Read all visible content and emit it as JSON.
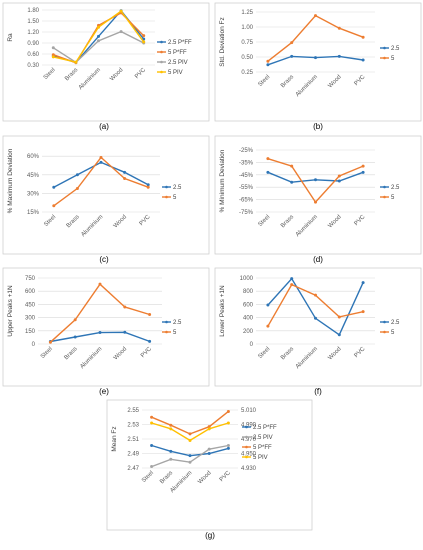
{
  "colors": {
    "blue": "#2E75B6",
    "orange": "#ED7D31",
    "gray": "#A5A5A5",
    "gold": "#FFC000",
    "grid": "#D9D9D9"
  },
  "chart_data": [
    {
      "panel_label": "(a)",
      "type": "line",
      "ylabel": "Ra",
      "ylim": [
        0.3,
        1.8
      ],
      "yticks": [
        "0.30",
        "0.60",
        "0.90",
        "1.20",
        "1.50",
        "1.80"
      ],
      "categories": [
        "Steel",
        "Brass",
        "Aluminium",
        "Wood",
        "PVC"
      ],
      "legend": "right",
      "series": [
        {
          "name": "2.5 P*FF",
          "color": "#2E75B6",
          "values": [
            0.55,
            0.37,
            1.08,
            1.78,
            1.01
          ]
        },
        {
          "name": "5 P*FF",
          "color": "#ED7D31",
          "values": [
            0.58,
            0.36,
            1.38,
            1.72,
            1.1
          ]
        },
        {
          "name": "2.5 PIV",
          "color": "#A5A5A5",
          "values": [
            0.77,
            0.37,
            0.96,
            1.21,
            0.9
          ]
        },
        {
          "name": "5 PIV",
          "color": "#FFC000",
          "values": [
            0.52,
            0.38,
            1.33,
            1.77,
            0.93
          ]
        }
      ]
    },
    {
      "panel_label": "(b)",
      "type": "line",
      "ylabel": "Std. Deviation Fz",
      "ylim": [
        0.25,
        1.25
      ],
      "yticks": [
        "0.25",
        "0.50",
        "0.75",
        "1.00",
        "1.25"
      ],
      "categories": [
        "Steel",
        "Brass",
        "Aluminium",
        "Wood",
        "PVC"
      ],
      "legend": "right",
      "series": [
        {
          "name": "2.5",
          "color": "#2E75B6",
          "values": [
            0.37,
            0.51,
            0.49,
            0.51,
            0.45
          ]
        },
        {
          "name": "5",
          "color": "#ED7D31",
          "values": [
            0.43,
            0.74,
            1.19,
            0.98,
            0.83
          ]
        }
      ]
    },
    {
      "panel_label": "(c)",
      "type": "line",
      "ylabel": "% Maximum Deviation",
      "ylim": [
        15,
        65
      ],
      "yticks": [
        "15%",
        "30%",
        "45%",
        "60%"
      ],
      "tick_values": [
        15,
        30,
        45,
        60
      ],
      "categories": [
        "Steel",
        "Brass",
        "Aluminium",
        "Wood",
        "PVC"
      ],
      "legend": "right",
      "series": [
        {
          "name": "2.5",
          "color": "#2E75B6",
          "values": [
            35,
            45,
            55,
            47,
            37
          ]
        },
        {
          "name": "5",
          "color": "#ED7D31",
          "values": [
            20,
            34,
            59,
            42,
            35
          ]
        }
      ]
    },
    {
      "panel_label": "(d)",
      "type": "line",
      "ylabel": "% Minimum Deviation",
      "ylim": [
        -75,
        -25
      ],
      "yticks": [
        "-25%",
        "-35%",
        "-45%",
        "-55%",
        "-65%",
        "-75%"
      ],
      "tick_values": [
        -25,
        -35,
        -45,
        -55,
        -65,
        -75
      ],
      "categories": [
        "Steel",
        "Brass",
        "Aluminium",
        "Wood",
        "PVC"
      ],
      "legend": "right",
      "series": [
        {
          "name": "2.5",
          "color": "#2E75B6",
          "values": [
            -43,
            -51,
            -49,
            -50,
            -43
          ]
        },
        {
          "name": "5",
          "color": "#ED7D31",
          "values": [
            -32,
            -38,
            -67,
            -46,
            -38
          ]
        }
      ]
    },
    {
      "panel_label": "(e)",
      "type": "line",
      "ylabel": "Upper Peaks +1N",
      "ylim": [
        0,
        750
      ],
      "yticks": [
        "0",
        "150",
        "300",
        "450",
        "600",
        "750"
      ],
      "categories": [
        "Steel",
        "Brass",
        "Aluminium",
        "Wood",
        "PVC"
      ],
      "legend": "right",
      "series": [
        {
          "name": "2.5",
          "color": "#2E75B6",
          "values": [
            28,
            80,
            130,
            133,
            30
          ]
        },
        {
          "name": "5",
          "color": "#ED7D31",
          "values": [
            20,
            275,
            680,
            420,
            335
          ]
        }
      ]
    },
    {
      "panel_label": "(f)",
      "type": "line",
      "ylabel": "Lower Peaks +1N",
      "ylim": [
        0,
        1000
      ],
      "yticks": [
        "0",
        "200",
        "400",
        "600",
        "800",
        "1000"
      ],
      "categories": [
        "Steel",
        "Brass",
        "Aluminium",
        "Wood",
        "PVC"
      ],
      "legend": "right",
      "series": [
        {
          "name": "2.5",
          "color": "#2E75B6",
          "values": [
            590,
            990,
            390,
            140,
            930
          ]
        },
        {
          "name": "5",
          "color": "#ED7D31",
          "values": [
            270,
            900,
            740,
            410,
            490
          ]
        }
      ]
    },
    {
      "panel_label": "(g)",
      "type": "line",
      "ylabel": "Mean Fz",
      "ylim": [
        2.47,
        2.55
      ],
      "yticks": [
        "2.47",
        "2.49",
        "2.51",
        "2.53",
        "2.55"
      ],
      "y2lim": [
        4.93,
        5.01
      ],
      "y2ticks": [
        "4.930",
        "4.950",
        "4.970",
        "4.990",
        "5.010"
      ],
      "categories": [
        "Steel",
        "Brass",
        "Aluminium",
        "Wood",
        "PVC"
      ],
      "legend": "right",
      "series": [
        {
          "name": "2.5 P*FF",
          "color": "#2E75B6",
          "axis": "left",
          "values": [
            2.501,
            2.493,
            2.487,
            2.49,
            2.497
          ]
        },
        {
          "name": "2.5 PIV",
          "color": "#A5A5A5",
          "axis": "left",
          "values": [
            2.472,
            2.482,
            2.478,
            2.496,
            2.501
          ]
        },
        {
          "name": "5 P*FF",
          "color": "#ED7D31",
          "axis": "right",
          "values": [
            5.0,
            4.989,
            4.977,
            4.987,
            5.008
          ]
        },
        {
          "name": "5 PIV",
          "color": "#FFC000",
          "axis": "right",
          "values": [
            4.992,
            4.984,
            4.968,
            4.984,
            4.992
          ]
        }
      ]
    }
  ]
}
